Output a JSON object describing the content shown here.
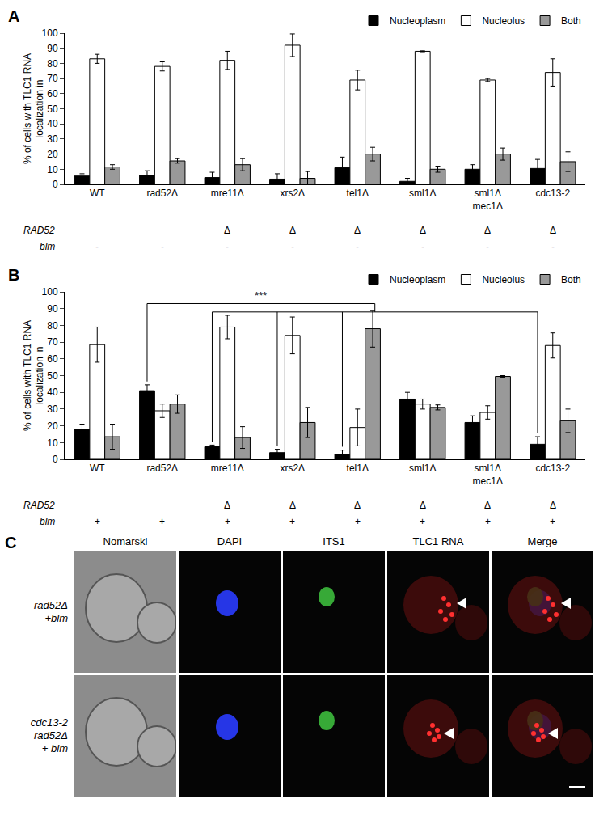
{
  "chart_data": [
    {
      "type": "bar",
      "panel": "A",
      "categories": [
        "WT",
        "rad52Δ",
        "mre11Δ",
        "xrs2Δ",
        "tel1Δ",
        "sml1Δ",
        "sml1Δ mec1Δ",
        "cdc13-2"
      ],
      "series": [
        {
          "name": "Nucleoplasm",
          "color": "#000000",
          "values": [
            5.5,
            6,
            4.5,
            3.5,
            11,
            2,
            10,
            10.5
          ],
          "error": [
            1.5,
            3,
            3.5,
            3.5,
            7,
            2,
            3,
            6
          ]
        },
        {
          "name": "Nucleolus",
          "color": "#ffffff",
          "values": [
            83,
            78,
            82,
            92,
            69,
            88,
            69,
            74
          ],
          "error": [
            3,
            3,
            6,
            7.5,
            6.5,
            0.3,
            1,
            9
          ]
        },
        {
          "name": "Both",
          "color": "#999999",
          "values": [
            11.5,
            15.5,
            13,
            4,
            20,
            10,
            20,
            15
          ],
          "error": [
            1.5,
            1.5,
            4,
            4.5,
            4.5,
            2,
            4,
            6.5
          ]
        }
      ],
      "ylabel": [
        "% of cells with TLC1 RNA",
        "localization in"
      ],
      "ylim": [
        0,
        100
      ],
      "yticks": [
        0,
        10,
        20,
        30,
        40,
        50,
        60,
        70,
        80,
        90,
        100
      ],
      "legend": "top right",
      "rows": [
        {
          "label": "RAD52",
          "values": [
            null,
            null,
            "Δ",
            "Δ",
            "Δ",
            "Δ",
            "Δ",
            "Δ"
          ]
        },
        {
          "label": "blm",
          "values": [
            "-",
            "-",
            "-",
            "-",
            "-",
            "-",
            "-",
            "-"
          ]
        }
      ]
    },
    {
      "type": "bar",
      "panel": "B",
      "categories": [
        "WT",
        "rad52Δ",
        "mre11Δ",
        "xrs2Δ",
        "tel1Δ",
        "sml1Δ",
        "sml1Δ mec1Δ",
        "cdc13-2"
      ],
      "series": [
        {
          "name": "Nucleoplasm",
          "color": "#000000",
          "values": [
            18,
            41,
            7.5,
            4,
            3,
            36,
            22,
            9
          ],
          "error": [
            3,
            3.5,
            1,
            2,
            2.5,
            4,
            4,
            4.5
          ]
        },
        {
          "name": "Nucleolus",
          "color": "#ffffff",
          "values": [
            68.5,
            29,
            79,
            74,
            19,
            33,
            28,
            68
          ],
          "error": [
            10.5,
            4,
            7,
            11,
            11,
            3,
            4,
            7.5
          ]
        },
        {
          "name": "Both",
          "color": "#999999",
          "values": [
            13.5,
            33,
            13,
            22,
            78,
            31,
            49.5,
            23
          ],
          "error": [
            7.5,
            5.5,
            6.5,
            9,
            11,
            1.5,
            0.5,
            7
          ]
        }
      ],
      "ylabel": [
        "% of cells with TLC1 RNA",
        "localization in"
      ],
      "ylim": [
        0,
        100
      ],
      "yticks": [
        0,
        10,
        20,
        30,
        40,
        50,
        60,
        70,
        80,
        90,
        100
      ],
      "legend": "top right",
      "significance": {
        "text": "***",
        "y": 93,
        "series": "Nucleoplasm",
        "from": "rad52Δ",
        "to": [
          "mre11Δ",
          "xrs2Δ",
          "tel1Δ",
          "cdc13-2"
        ]
      },
      "rows": [
        {
          "label": "RAD52",
          "values": [
            null,
            null,
            "Δ",
            "Δ",
            "Δ",
            "Δ",
            "Δ",
            "Δ"
          ]
        },
        {
          "label": "blm",
          "values": [
            "+",
            "+",
            "+",
            "+",
            "+",
            "+",
            "+",
            "+"
          ]
        }
      ]
    }
  ],
  "panel_c": {
    "panel": "C",
    "columns": [
      "Nomarski",
      "DAPI",
      "ITS1",
      "TLC1 RNA",
      "Merge"
    ],
    "rows": [
      [
        "rad52Δ",
        "+blm"
      ],
      [
        "cdc13-2",
        "rad52Δ",
        "+ blm"
      ]
    ]
  }
}
